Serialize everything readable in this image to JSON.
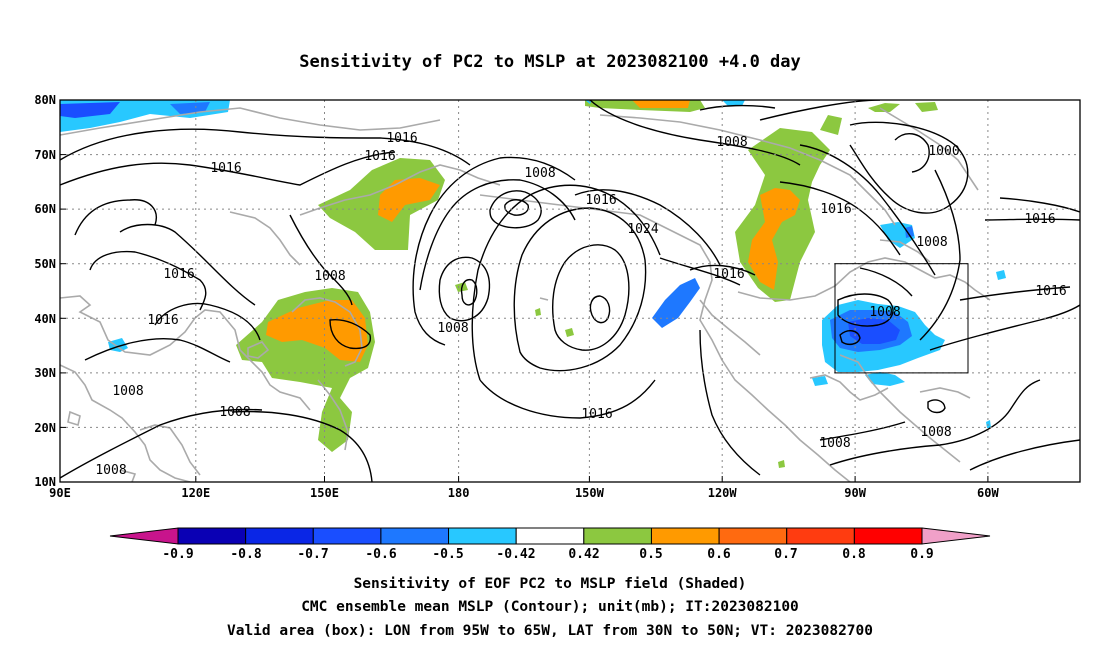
{
  "title": "Sensitivity of PC2 to MSLP at 2023082100 +4.0 day",
  "map": {
    "lat_labels": [
      "80N",
      "70N",
      "60N",
      "50N",
      "40N",
      "30N",
      "20N",
      "10N"
    ],
    "lon_labels": [
      "90E",
      "120E",
      "150E",
      "180",
      "150W",
      "120W",
      "90W",
      "60W"
    ],
    "lon_range": [
      "90E",
      "40W"
    ],
    "lat_range": [
      "10N",
      "80N"
    ],
    "gridlines": "dotted",
    "valid_box": {
      "lon_from": "95W",
      "lon_to": "65W",
      "lat_from": "30N",
      "lat_to": "50N"
    }
  },
  "contours": {
    "unit": "mb",
    "labels": [
      {
        "id": "c1",
        "text": "1016"
      },
      {
        "id": "c2",
        "text": "1016"
      },
      {
        "id": "c3",
        "text": "1016"
      },
      {
        "id": "c4",
        "text": "1008"
      },
      {
        "id": "c5",
        "text": "1016"
      },
      {
        "id": "c6",
        "text": "1024"
      },
      {
        "id": "c7",
        "text": "1008"
      },
      {
        "id": "c8",
        "text": "1016"
      },
      {
        "id": "c9",
        "text": "1008"
      },
      {
        "id": "c10",
        "text": "1016"
      },
      {
        "id": "c11",
        "text": "1008"
      },
      {
        "id": "c12",
        "text": "1016"
      },
      {
        "id": "c13",
        "text": "1008"
      },
      {
        "id": "c14",
        "text": "1016"
      },
      {
        "id": "c15",
        "text": "1000"
      },
      {
        "id": "c16",
        "text": "1008"
      },
      {
        "id": "c17",
        "text": "1016"
      },
      {
        "id": "c18",
        "text": "1016"
      },
      {
        "id": "c19",
        "text": "1008"
      },
      {
        "id": "c20",
        "text": "1008"
      },
      {
        "id": "c21",
        "text": "1016"
      },
      {
        "id": "c22",
        "text": "1008"
      },
      {
        "id": "c23",
        "text": "1008"
      },
      {
        "id": "c24",
        "text": "1008"
      }
    ]
  },
  "colorbar": {
    "labels": [
      "-0.9",
      "-0.8",
      "-0.7",
      "-0.6",
      "-0.5",
      "-0.42",
      "0.42",
      "0.5",
      "0.6",
      "0.7",
      "0.8",
      "0.9"
    ],
    "colors": [
      "#0a00b4",
      "#0a26e6",
      "#1a4eff",
      "#1e78ff",
      "#28c8ff",
      "#ffffff",
      "#8cc840",
      "#ff9a00",
      "#ff6a10",
      "#ff3c10",
      "#ff0000"
    ],
    "low_extend_color": "#c8148c",
    "high_extend_color": "#f0a0c8"
  },
  "colors": {
    "coast": "#aaaaaa",
    "contour": "#000000",
    "pos_green": "#8cc840",
    "pos_orange": "#ff9a00",
    "neg_light_blue": "#28c8ff",
    "neg_blue": "#1e78ff",
    "neg_dark_blue": "#1a4eff"
  },
  "caption": {
    "line1": "Sensitivity of EOF PC2 to MSLP field (Shaded)",
    "line2": "CMC ensemble mean MSLP (Contour); unit(mb); IT:2023082100",
    "line3": "Valid area (box): LON from 95W to 65W, LAT from 30N to 50N; VT: 2023082700"
  }
}
